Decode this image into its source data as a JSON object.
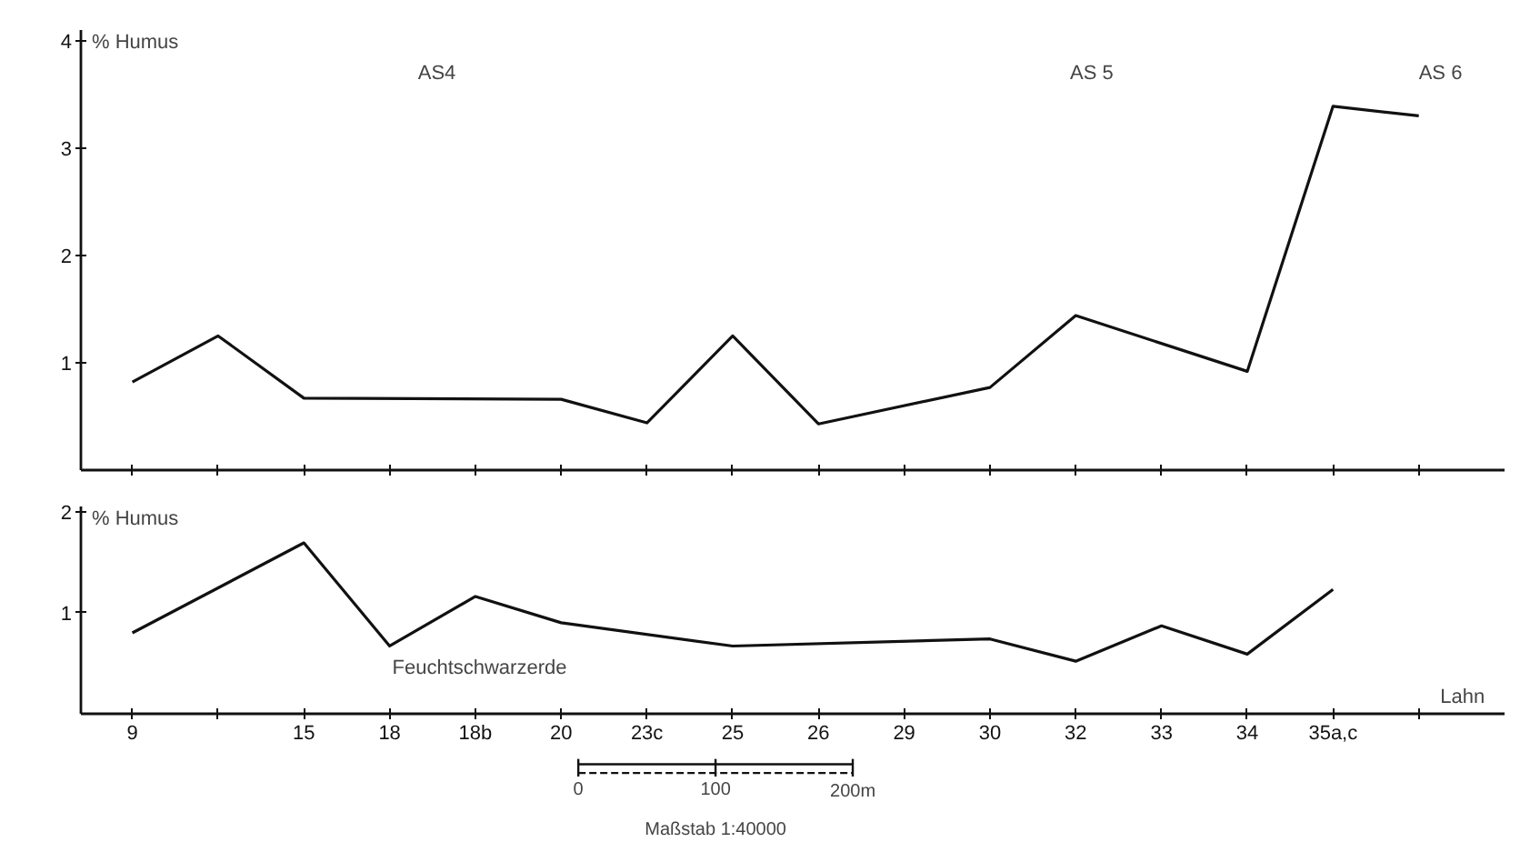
{
  "chart_data": [
    {
      "type": "line",
      "ylabel": "% Humus",
      "categories": [
        null,
        null,
        null,
        null,
        null,
        null,
        null,
        null,
        null,
        null,
        null,
        null,
        null,
        null,
        null,
        null
      ],
      "series": [
        {
          "color": "#111111",
          "values": [
            0.82,
            1.25,
            0.67,
            null,
            null,
            0.66,
            0.44,
            1.25,
            0.43,
            null,
            0.77,
            1.44,
            null,
            0.92,
            3.39,
            3.3
          ]
        }
      ],
      "ylim": [
        0,
        4.1
      ],
      "yticks": [
        1,
        2,
        3,
        4
      ],
      "tick_labels": "y",
      "grid": false,
      "line_style": "solid",
      "annotations": [
        "AS4",
        "AS 5",
        "AS 6"
      ]
    },
    {
      "type": "line",
      "ylabel": "% Humus",
      "xlabel": "Lahn",
      "categories": [
        "9",
        null,
        "15",
        "18",
        "18b",
        "20",
        "23c",
        "25",
        "26",
        "29",
        "30",
        "32",
        "33",
        "34",
        "35a,c",
        null
      ],
      "series": [
        {
          "color": "#111111",
          "values": [
            0.8,
            null,
            1.69,
            0.67,
            1.16,
            0.9,
            null,
            0.67,
            null,
            null,
            0.74,
            0.52,
            0.87,
            0.59,
            1.23,
            null
          ]
        }
      ],
      "ylim": [
        0,
        2.05
      ],
      "yticks": [
        1,
        2
      ],
      "grid": false,
      "line_style": "solid",
      "annotations": [
        "Feuchtschwarzerde",
        "0",
        "100",
        "200m",
        "Maßstab 1:40000"
      ]
    }
  ]
}
